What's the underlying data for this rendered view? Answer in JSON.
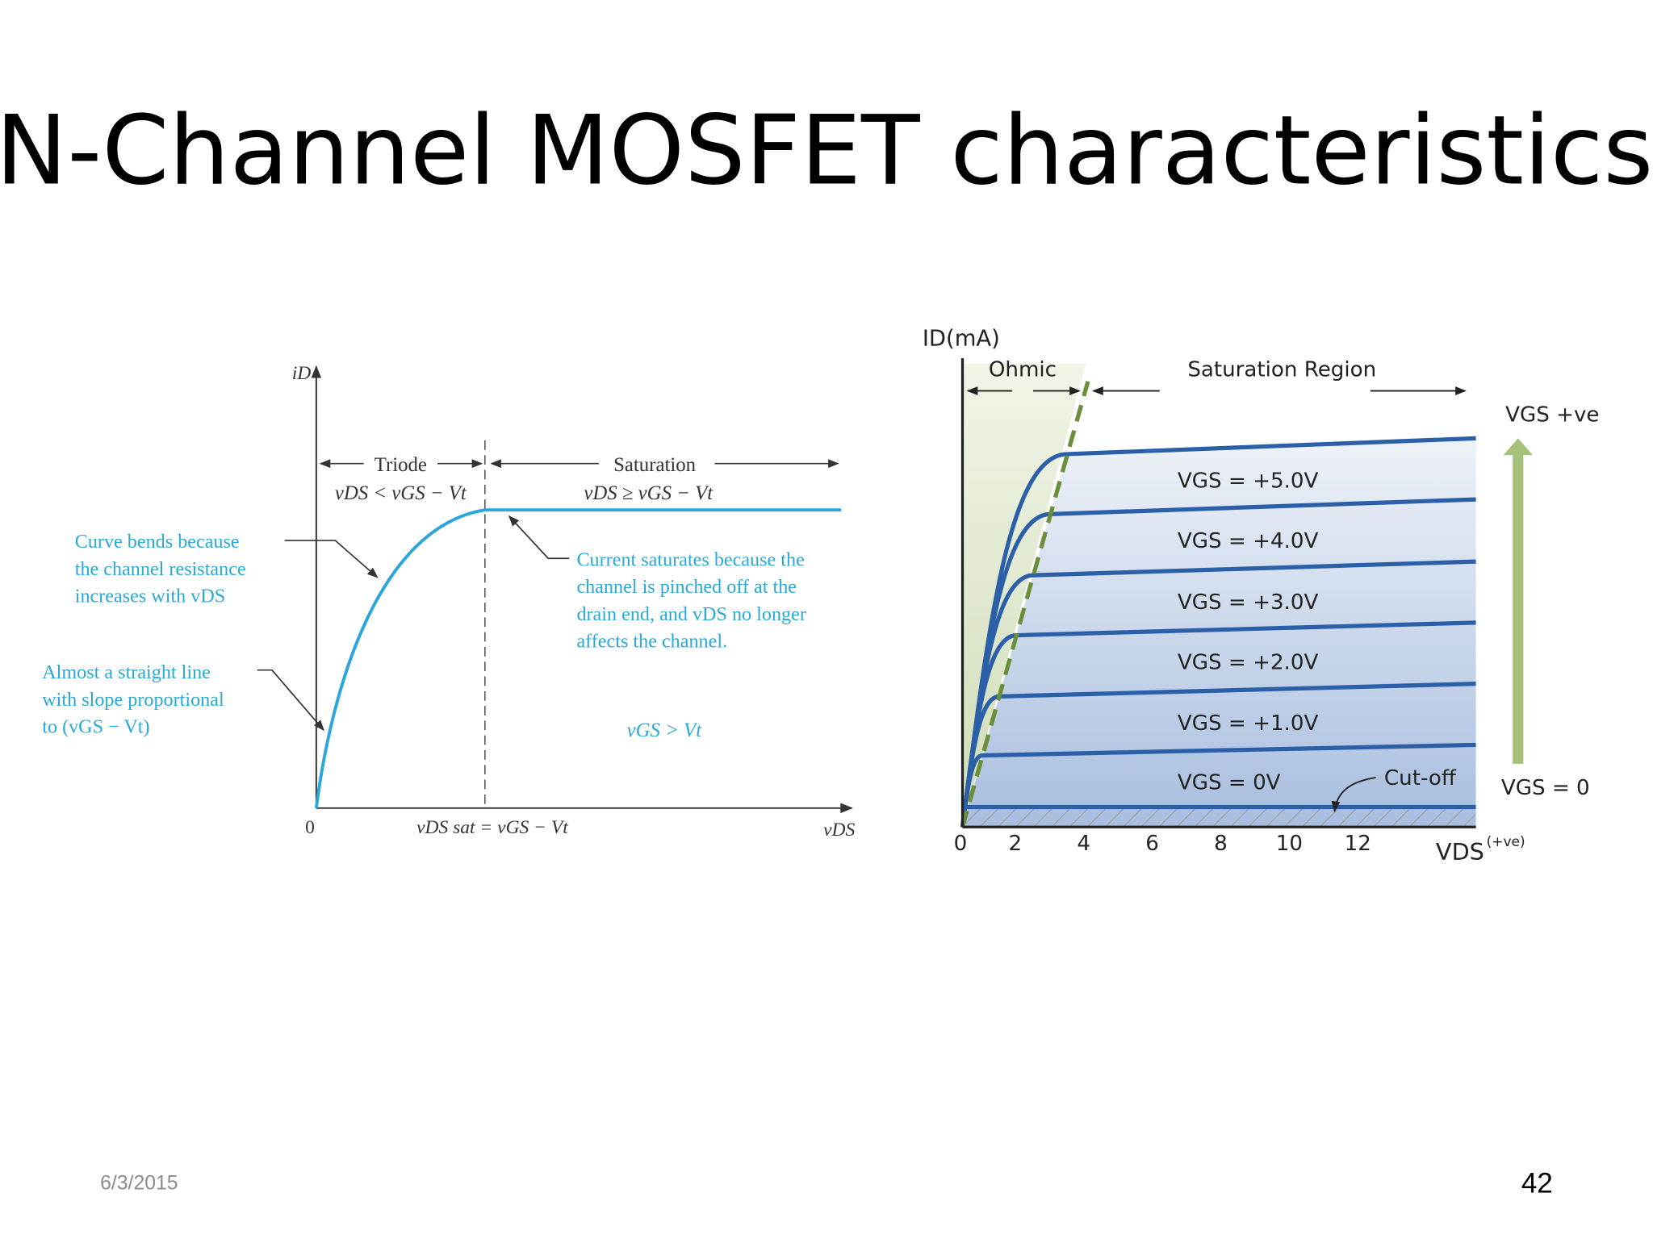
{
  "header": {
    "title": "N-Channel MOSFET characteristics"
  },
  "left_diagram": {
    "y_axis_label": "iD",
    "x_axis_label": "vDS",
    "origin_label": "0",
    "x_marker_label": "vDS sat = vGS − Vt",
    "regions": [
      {
        "name": "Triode",
        "condition": "vDS < vGS − Vt"
      },
      {
        "name": "Saturation",
        "condition": "vDS ≥ vGS − Vt"
      }
    ],
    "annotations": [
      {
        "lines": [
          "Curve bends because",
          "the channel resistance",
          "increases with vDS"
        ]
      },
      {
        "lines": [
          "Almost a straight line",
          "with slope proportional",
          "to (vGS − Vt)"
        ]
      },
      {
        "lines": [
          "Current saturates because the",
          "channel is pinched off at the",
          "drain end, and vDS no longer",
          "affects the channel."
        ]
      }
    ],
    "curve_condition": "vGS > Vt"
  },
  "right_diagram": {
    "y_axis_label": "ID(mA)",
    "x_axis_label": "VDS",
    "x_axis_note": "(+ve)",
    "x_ticks": [
      "0",
      "2",
      "4",
      "6",
      "8",
      "10",
      "12"
    ],
    "regions": [
      "Ohmic",
      "Saturation Region"
    ],
    "curve_labels": [
      "VGS = +5.0V",
      "VGS = +4.0V",
      "VGS = +3.0V",
      "VGS = +2.0V",
      "VGS = +1.0V",
      "VGS = 0V"
    ],
    "cutoff_label": "Cut-off",
    "arrow_top_label": "VGS +ve",
    "arrow_bottom_label": "VGS = 0"
  },
  "footer": {
    "date": "6/3/2015",
    "page_number": "42"
  }
}
